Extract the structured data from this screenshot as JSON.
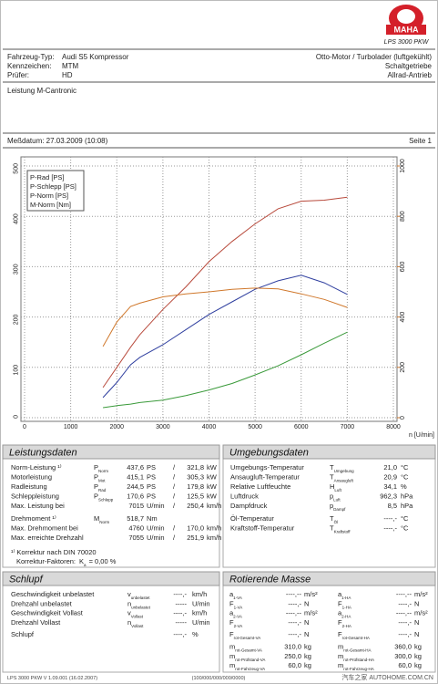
{
  "header": {
    "logo": "MAHA",
    "model": "LPS 3000 PKW",
    "left": [
      {
        "label": "Fahrzeug-Typ:",
        "value": "Audi S5 Kompressor"
      },
      {
        "label": "Kennzeichen:",
        "value": "MTM"
      },
      {
        "label": "Prüfer:",
        "value": "HD"
      }
    ],
    "right": [
      "Otto-Motor / Turbolader (luftgekühlt)",
      "Schaltgetriebe",
      "Allrad-Antrieb"
    ],
    "note": "Leistung M-Cantronic",
    "date": "Meßdatum: 27.03.2009 (10:08)",
    "page": "Seite 1"
  },
  "chart_data": {
    "type": "line",
    "x_label": "n [U/min]",
    "x": [
      1700,
      2000,
      2300,
      2500,
      3000,
      3500,
      4000,
      4500,
      5000,
      5500,
      6000,
      6500,
      7000
    ],
    "series": [
      {
        "name": "P-Rad [PS]",
        "color": "#2f3f9f",
        "values": [
          40,
          70,
          105,
          120,
          145,
          175,
          205,
          230,
          255,
          272,
          283,
          268,
          245
        ]
      },
      {
        "name": "P-Schlepp [PS]",
        "color": "#3a9a3a",
        "values": [
          20,
          24,
          27,
          30,
          35,
          44,
          55,
          68,
          85,
          103,
          125,
          148,
          170
        ]
      },
      {
        "name": "P-Norm [PS]",
        "color": "#b84a3c",
        "values": [
          60,
          100,
          140,
          165,
          215,
          260,
          310,
          350,
          385,
          415,
          430,
          432,
          438
        ]
      },
      {
        "name": "M-Norm [Nm]",
        "color": "#d0782c",
        "axis": "y2",
        "values": [
          283,
          380,
          442,
          455,
          480,
          492,
          500,
          510,
          515,
          512,
          492,
          470,
          438
        ]
      }
    ],
    "xlim": [
      0,
      8000
    ],
    "xticks": [
      0,
      1000,
      2000,
      3000,
      4000,
      5000,
      6000,
      7000,
      8000
    ],
    "ylim": [
      0,
      500
    ],
    "yticks": [
      0,
      100,
      200,
      300,
      400,
      500
    ],
    "y2lim": [
      0,
      1000
    ],
    "y2ticks": [
      0,
      200,
      400,
      600,
      800,
      1000
    ],
    "y2color": "#d0782c",
    "grid": true,
    "legend": "top-left"
  },
  "leistungsdaten": {
    "title": "Leistungsdaten",
    "groups": [
      [
        {
          "label": "Norm-Leistung ¹⁾",
          "sym": "P",
          "sub": "Norm",
          "v1": "437,6",
          "u1": "PS",
          "sep": "/",
          "v2": "321,8",
          "u2": "kW",
          "color": "#d02020"
        },
        {
          "label": "Motorleistung",
          "sym": "P",
          "sub": "Mot",
          "v1": "415,1",
          "u1": "PS",
          "sep": "/",
          "v2": "305,3",
          "u2": "kW",
          "color": "#d02020"
        },
        {
          "label": "Radleistung",
          "sym": "P",
          "sub": "Rad",
          "v1": "244,5",
          "u1": "PS",
          "sep": "/",
          "v2": "179,8",
          "u2": "kW",
          "color": "#2030b0"
        },
        {
          "label": "Schleppleistung",
          "sym": "P",
          "sub": "Schlepp",
          "v1": "170,6",
          "u1": "PS",
          "sep": "/",
          "v2": "125,5",
          "u2": "kW",
          "color": "#208a20"
        },
        {
          "label": "Max. Leistung bei",
          "v1": "7015",
          "u1": "U/min",
          "sep": "/",
          "v2": "250,4",
          "u2": "km/h",
          "color": "#222222"
        }
      ],
      [
        {
          "label": "Drehmoment ¹⁾",
          "sym": "M",
          "sub": "Norm",
          "v1": "518,7",
          "u1": "Nm",
          "color": "#e07020"
        },
        {
          "label": "Max. Drehmoment bei",
          "v1": "4760",
          "u1": "U/min",
          "sep": "/",
          "v2": "170,0",
          "u2": "km/h",
          "color": "#222222"
        },
        {
          "label": "Max. erreichte Drehzahl",
          "v1": "7055",
          "u1": "U/min",
          "sep": "/",
          "v2": "251,9",
          "u2": "km/h",
          "color": "#222222"
        }
      ]
    ],
    "footnote": {
      "line1": "¹⁾ Korrektur nach DIN 70020",
      "label": "Korrektur-Faktoren:",
      "sym": "K",
      "sub": "a",
      "value": "=  0,00 %",
      "color": "#d02020"
    }
  },
  "umgebungsdaten": {
    "title": "Umgebungsdaten",
    "groups": [
      [
        {
          "label": "Umgebungs-Temperatur",
          "sym": "T",
          "sub": "Umgebung",
          "value": "21,0",
          "unit": "°C"
        },
        {
          "label": "Ansaugluft-Temperatur",
          "sym": "T",
          "sub": "Ansaugluft",
          "value": "20,9",
          "unit": "°C"
        },
        {
          "label": "Relative Luftfeuchte",
          "sym": "H",
          "sub": "Luft",
          "value": "34,1",
          "unit": "%"
        },
        {
          "label": "Luftdruck",
          "sym": "p",
          "sub": "Luft",
          "value": "962,3",
          "unit": "hPa"
        },
        {
          "label": "Dampfdruck",
          "sym": "p",
          "sub": "Dampf",
          "value": "8,5",
          "unit": "hPa"
        }
      ],
      [
        {
          "label": "Öl-Temperatur",
          "sym": "T",
          "sub": "Öl",
          "value": "----,-",
          "unit": "°C"
        },
        {
          "label": "Kraftstoff-Temperatur",
          "sym": "T",
          "sub": "Kraftstoff",
          "value": "----,-",
          "unit": "°C"
        }
      ]
    ]
  },
  "schlupf": {
    "title": "Schlupf",
    "groups": [
      [
        {
          "label": "Geschwindigkeit unbelastet",
          "sym": "v",
          "sub": "unbelastet",
          "value": "----,-",
          "unit": "km/h"
        },
        {
          "label": "Drehzahl unbelastet",
          "sym": "n",
          "sub": "unbelastet",
          "value": "-----",
          "unit": "U/min"
        },
        {
          "label": "Geschwindigkeit Vollast",
          "sym": "v",
          "sub": "Vollast",
          "value": "----,-",
          "unit": "km/h"
        },
        {
          "label": "Drehzahl Vollast",
          "sym": "n",
          "sub": "Vollast",
          "value": "-----",
          "unit": "U/min"
        }
      ],
      [
        {
          "label": "Schlupf",
          "value": "----,-",
          "unit": "%"
        }
      ]
    ]
  },
  "rotierende_masse": {
    "title": "Rotierende Masse",
    "groups": [
      [
        {
          "l": {
            "sym": "a",
            "sub": "1-VA",
            "value": "----,--",
            "unit": "m/s²"
          },
          "r": {
            "sym": "a",
            "sub": "1-HA",
            "value": "----,--",
            "unit": "m/s²"
          }
        },
        {
          "l": {
            "sym": "F",
            "sub": "1-VA",
            "value": "----,-",
            "unit": "N"
          },
          "r": {
            "sym": "F",
            "sub": "1-HA",
            "value": "----,-",
            "unit": "N"
          }
        },
        {
          "l": {
            "sym": "a",
            "sub": "2-VA",
            "value": "----,--",
            "unit": "m/s²"
          },
          "r": {
            "sym": "a",
            "sub": "2-HA",
            "value": "----,--",
            "unit": "m/s²"
          }
        },
        {
          "l": {
            "sym": "F",
            "sub": "2-VA",
            "value": "----,-",
            "unit": "N"
          },
          "r": {
            "sym": "F",
            "sub": "2-HA",
            "value": "----,-",
            "unit": "N"
          }
        }
      ],
      [
        {
          "l": {
            "sym": "F",
            "sub": "rot-Gesamt-VA",
            "value": "----,-",
            "unit": "N"
          },
          "r": {
            "sym": "F",
            "sub": "rot-Gesamt-HA",
            "value": "----,-",
            "unit": "N"
          }
        }
      ],
      [
        {
          "l": {
            "sym": "m",
            "sub": "rot-Gesamt-VA",
            "value": "310,0",
            "unit": "kg"
          },
          "r": {
            "sym": "m",
            "sub": "rot-Gesamt-HA",
            "value": "360,0",
            "unit": "kg"
          }
        },
        {
          "l": {
            "sym": "m",
            "sub": "rot-Prüfstand-VA",
            "value": "250,0",
            "unit": "kg"
          },
          "r": {
            "sym": "m",
            "sub": "rot-Prüfstand-HA",
            "value": "300,0",
            "unit": "kg"
          }
        },
        {
          "l": {
            "sym": "m",
            "sub": "rot-Fahrzeug-VA",
            "value": "60,0",
            "unit": "kg"
          },
          "r": {
            "sym": "m",
            "sub": "rot-Fahrzeug-HA",
            "value": "60,0",
            "unit": "kg"
          }
        }
      ]
    ]
  },
  "footer": {
    "version": "LPS 3000 PKW V 1.09.001 (16.02.2007)",
    "code": "(100/000/000/000/0000)",
    "watermark": "汽车之家 AUTOHOME.COM.CN"
  }
}
